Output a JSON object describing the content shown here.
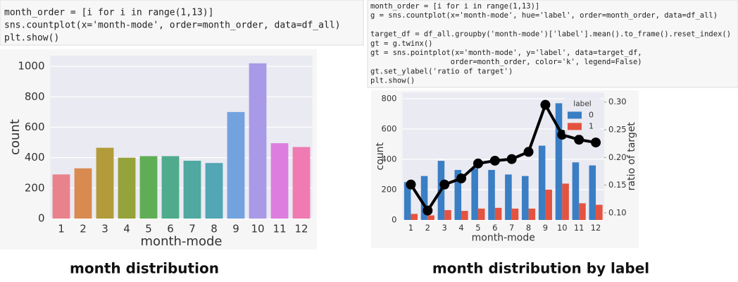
{
  "code_cells": [
    {
      "lines": [
        "month_order = [i for i in range(1,13)]",
        "sns.countplot(x='month-mode', order=month_order, data=df_all)",
        "plt.show()"
      ]
    },
    {
      "lines": [
        "month_order = [i for i in range(1,13)]",
        "g = sns.countplot(x='month-mode', hue='label', order=month_order, data=df_all)",
        "target_df = df_all.groupby('month-mode')['label'].mean().to_frame().reset_index()",
        "gt = g.twinx()",
        "gt = sns.pointplot(x='month-mode', y='label', data=target_df,",
        "                  order=month_order, color='k', legend=False)",
        "gt.set_ylabel('ratio of target')",
        "plt.show()"
      ]
    }
  ],
  "chart_data": [
    {
      "type": "bar",
      "categories": [
        "1",
        "2",
        "3",
        "4",
        "5",
        "6",
        "7",
        "8",
        "9",
        "10",
        "11",
        "12"
      ],
      "values": [
        290,
        330,
        465,
        400,
        410,
        410,
        380,
        365,
        700,
        1020,
        495,
        470
      ],
      "colors": [
        "#e8838d",
        "#d98a50",
        "#b39b3a",
        "#96a23a",
        "#5fae55",
        "#4fab8c",
        "#4fa9a0",
        "#52a6b6",
        "#72a3df",
        "#a89ae6",
        "#dd7ddf",
        "#ef7bb2"
      ],
      "xlabel": "month-mode",
      "ylabel": "count",
      "ylim": [
        0,
        1070
      ],
      "yticks": [
        0,
        200,
        400,
        600,
        800,
        1000
      ],
      "grid": true
    },
    {
      "type": "grouped_bar",
      "categories": [
        "1",
        "2",
        "3",
        "4",
        "5",
        "6",
        "7",
        "8",
        "9",
        "10",
        "11",
        "12"
      ],
      "series": [
        {
          "name": "0",
          "color": "#3a7ec4",
          "values": [
            250,
            290,
            390,
            330,
            340,
            330,
            300,
            290,
            490,
            770,
            380,
            360
          ]
        },
        {
          "name": "1",
          "color": "#e4533f",
          "values": [
            40,
            30,
            65,
            60,
            75,
            80,
            75,
            75,
            200,
            240,
            110,
            100
          ]
        }
      ],
      "line": {
        "color": "#000000",
        "axis": "y2",
        "values": [
          0.151,
          0.104,
          0.151,
          0.162,
          0.189,
          0.194,
          0.197,
          0.21,
          0.295,
          0.241,
          0.232,
          0.227
        ]
      },
      "xlabel": "month-mode",
      "ylabel": "count",
      "y2label": "ratio of target",
      "ylim": [
        0,
        840
      ],
      "yticks": [
        0,
        200,
        400,
        600,
        800
      ],
      "y2lim": [
        0.087,
        0.317
      ],
      "y2ticks": [
        {
          "value": 0.1,
          "label": "0.10"
        },
        0.15,
        {
          "value": 0.2,
          "label": "0.20"
        },
        0.25,
        {
          "value": 0.3,
          "label": "0.30"
        }
      ],
      "legend_title": "label",
      "legend": "upper right",
      "grid": true
    }
  ],
  "captions": [
    "month distribution",
    "month distribution by label"
  ]
}
